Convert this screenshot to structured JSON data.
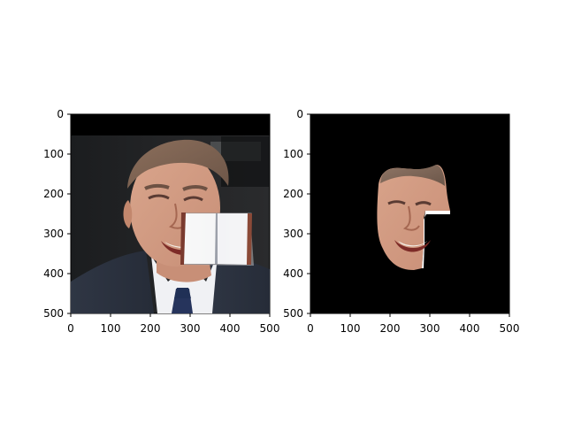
{
  "figure": {
    "background": "#ffffff",
    "panels": [
      {
        "id": "left",
        "content": "original face photo with an open book occluding the right cheek",
        "x_ticks": [
          "0",
          "100",
          "200",
          "300",
          "400",
          "500"
        ],
        "y_ticks": [
          "0",
          "100",
          "200",
          "300",
          "400",
          "500"
        ]
      },
      {
        "id": "right",
        "content": "segmented face mask on black background with occluded region removed",
        "x_ticks": [
          "0",
          "100",
          "200",
          "300",
          "400",
          "500"
        ],
        "y_ticks": [
          "0",
          "100",
          "200",
          "300",
          "400",
          "500"
        ]
      }
    ]
  }
}
